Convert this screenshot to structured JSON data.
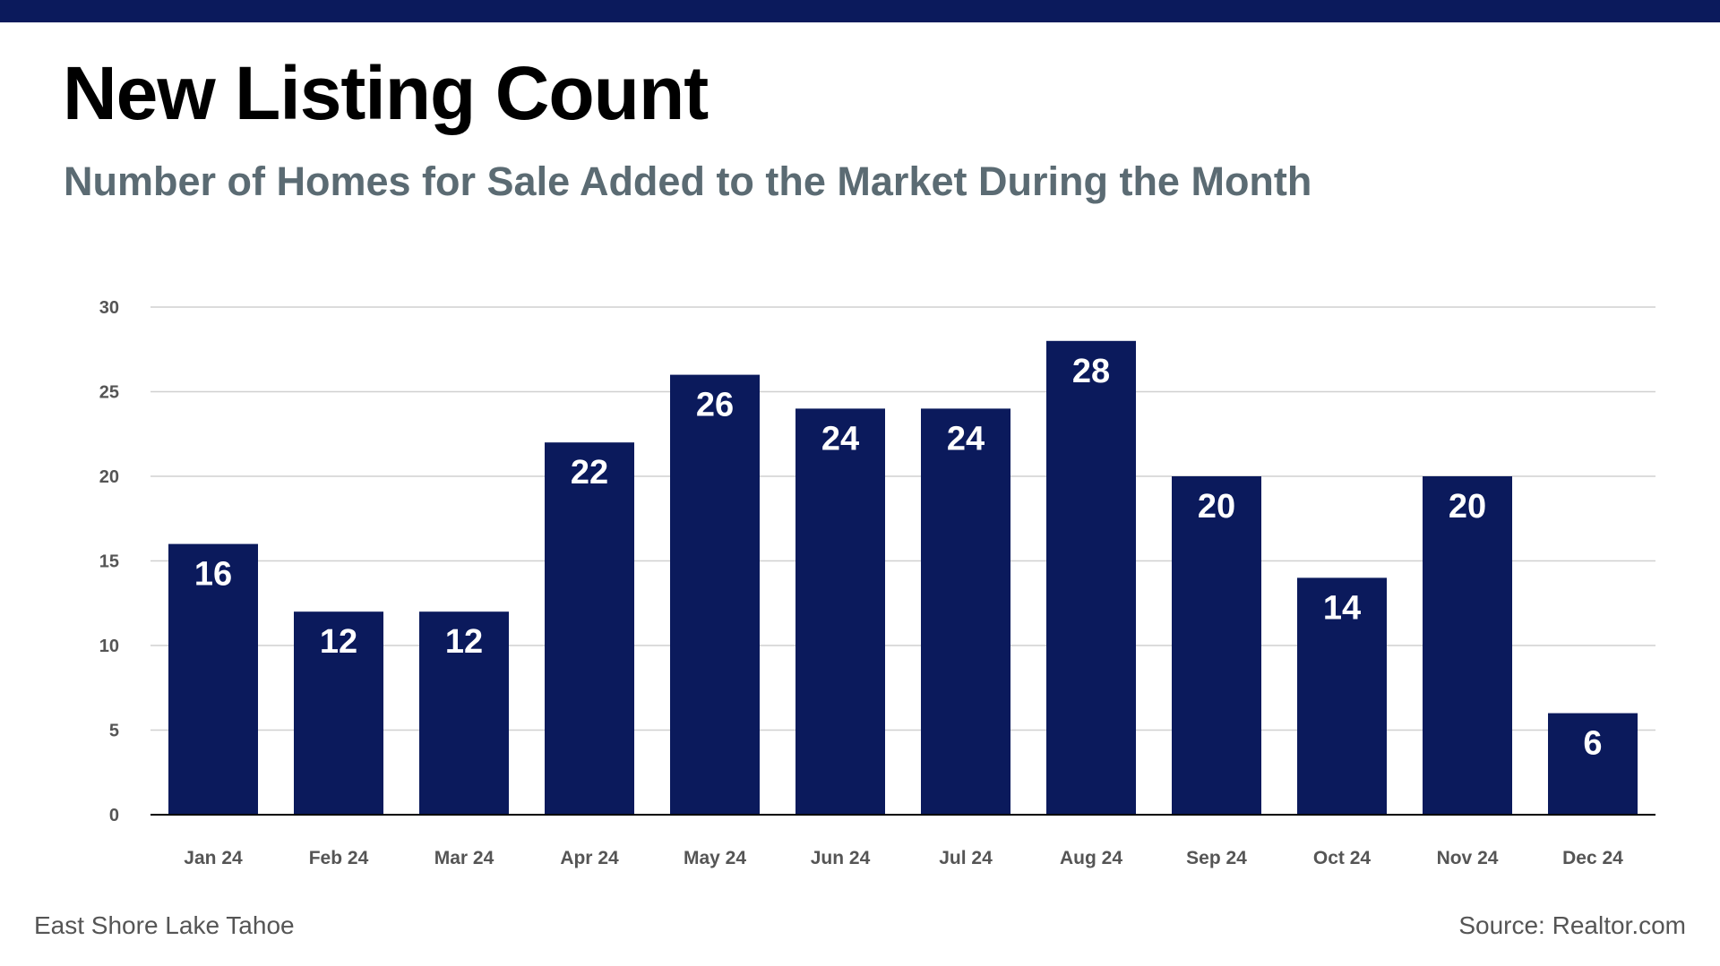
{
  "header": {
    "title": "New Listing Count",
    "subtitle": "Number of Homes for Sale Added to the Market During the Month"
  },
  "footer": {
    "left": "East Shore Lake Tahoe",
    "right": "Source: Realtor.com"
  },
  "colors": {
    "bar": "#0b1a5c",
    "top_bar": "#0b1a5c",
    "gridline": "#d0d0d0",
    "axis": "#000000",
    "subtitle": "#5b6b73"
  },
  "chart_data": {
    "type": "bar",
    "title": "New Listing Count",
    "subtitle": "Number of Homes for Sale Added to the Market During the Month",
    "xlabel": "",
    "ylabel": "",
    "categories": [
      "Jan 24",
      "Feb 24",
      "Mar 24",
      "Apr 24",
      "May 24",
      "Jun 24",
      "Jul 24",
      "Aug 24",
      "Sep 24",
      "Oct 24",
      "Nov 24",
      "Dec 24"
    ],
    "values": [
      16,
      12,
      12,
      22,
      26,
      24,
      24,
      28,
      20,
      14,
      20,
      6
    ],
    "ylim": [
      0,
      30
    ],
    "yticks": [
      0,
      5,
      10,
      15,
      20,
      25,
      30
    ],
    "grid": true,
    "legend": "none",
    "data_labels": true
  }
}
